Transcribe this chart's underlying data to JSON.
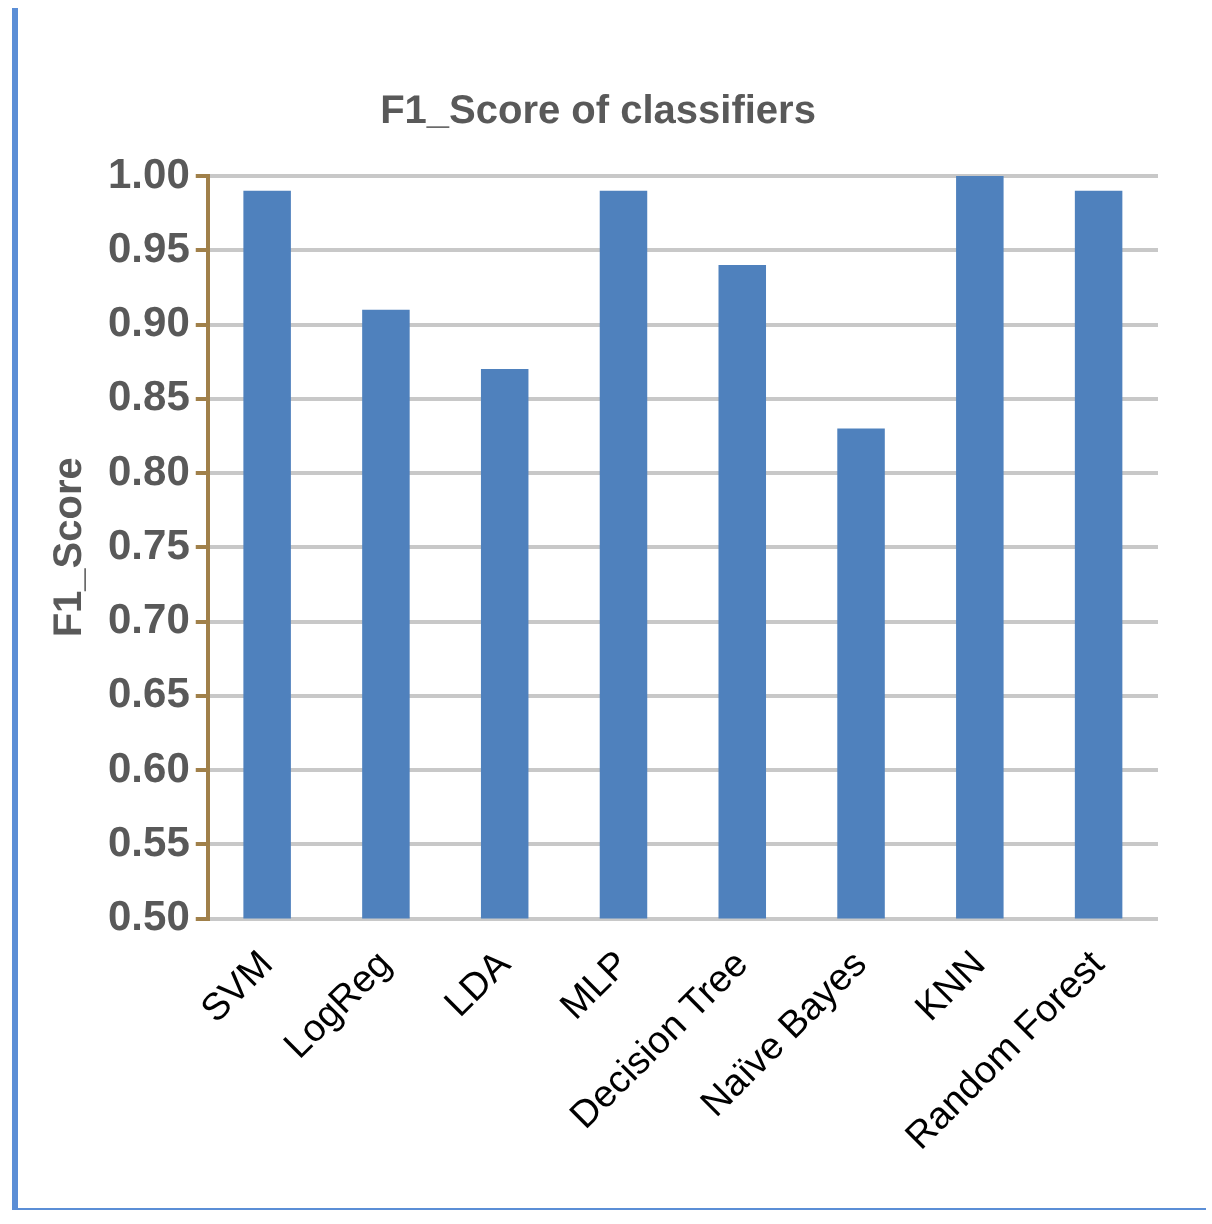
{
  "chart_data": {
    "type": "bar",
    "title": "F1_Score of classifiers",
    "ylabel": "F1_Score",
    "categories": [
      "SVM",
      "LogReg",
      "LDA",
      "MLP",
      "Decision Tree",
      "Naïve Bayes",
      "KNN",
      "Random Forest"
    ],
    "values": [
      0.99,
      0.91,
      0.87,
      0.99,
      0.94,
      0.83,
      1.0,
      0.99
    ],
    "color": "#4f81bd",
    "ylim": [
      0.5,
      1.0
    ],
    "yticks": [
      {
        "value": 0.5,
        "label": "0.50"
      },
      {
        "value": 0.55,
        "label": "0.55"
      },
      {
        "value": 0.6,
        "label": "0.60"
      },
      {
        "value": 0.65,
        "label": "0.65"
      },
      {
        "value": 0.7,
        "label": "0.70"
      },
      {
        "value": 0.75,
        "label": "0.75"
      },
      {
        "value": 0.8,
        "label": "0.80"
      },
      {
        "value": 0.85,
        "label": "0.85"
      },
      {
        "value": 0.9,
        "label": "0.90"
      },
      {
        "value": 0.95,
        "label": "0.95"
      },
      {
        "value": 1.0,
        "label": "1.00"
      }
    ],
    "grid": "y",
    "legend": false
  }
}
